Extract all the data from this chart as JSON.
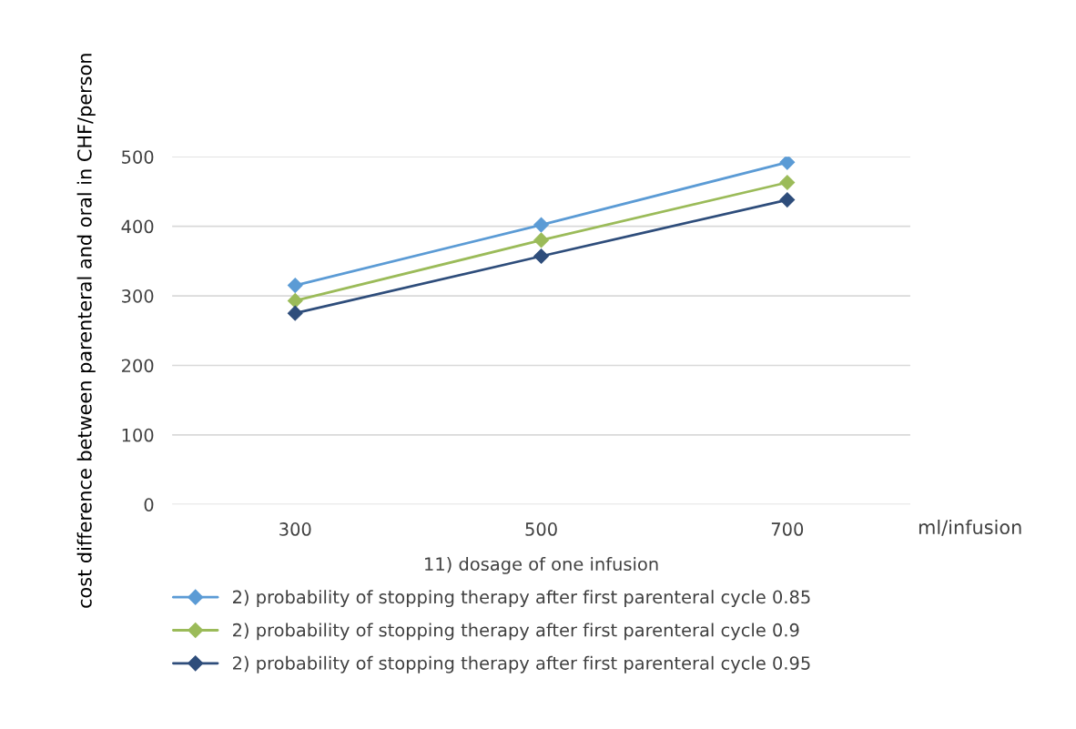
{
  "chart_data": {
    "type": "line",
    "xlabel": "11) dosage of one infusion",
    "ylabel": "cost difference between parenteral and oral in CHF/person",
    "categories": [
      "300",
      "500",
      "700"
    ],
    "series": [
      {
        "name": "2) probability of stopping therapy after first parenteral cycle 0.85",
        "color": "#5b9bd5",
        "values": [
          315,
          402,
          492
        ]
      },
      {
        "name": "2) probability of stopping therapy after first parenteral cycle 0.9",
        "color": "#9bbb59",
        "values": [
          293,
          380,
          463
        ]
      },
      {
        "name": "2) probability of stopping therapy after first parenteral cycle 0.95",
        "color": "#2e4d7b",
        "values": [
          275,
          357,
          438
        ]
      }
    ],
    "ylim": [
      0,
      500
    ],
    "yticks": [
      0,
      100,
      200,
      300,
      400,
      500
    ],
    "grid": "y",
    "legend": "bottom",
    "marker": "diamond",
    "line_style": "solid",
    "annotations": [
      "ml/infusion"
    ]
  }
}
